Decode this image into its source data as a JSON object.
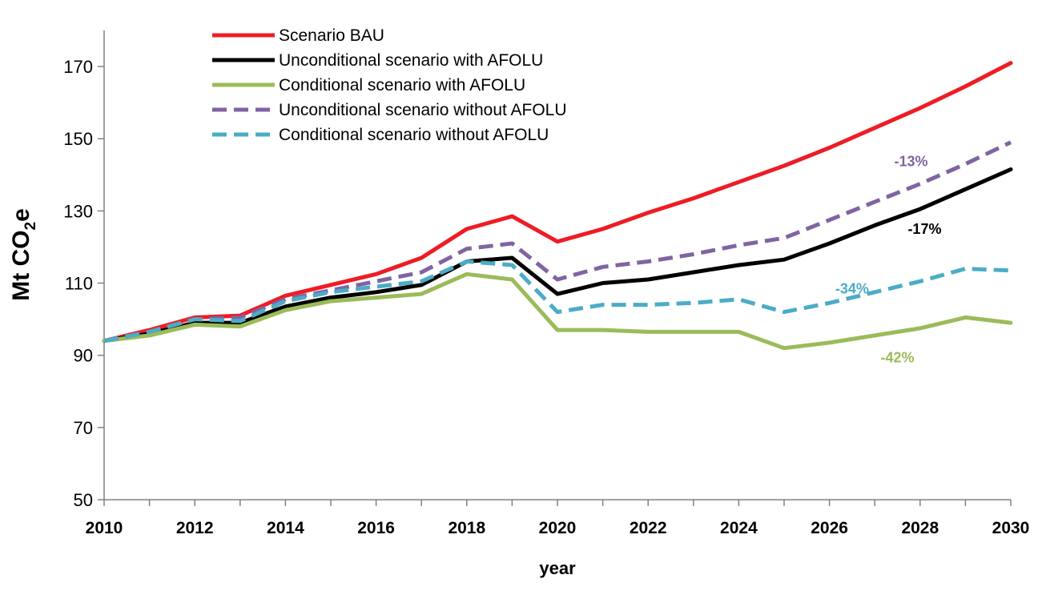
{
  "chart_data": {
    "type": "line",
    "xlabel": "year",
    "ylabel_main": "Mt CO",
    "ylabel_sub": "2",
    "ylabel_tail": "e",
    "xlim": [
      2010,
      2030
    ],
    "ylim": [
      50,
      180
    ],
    "xticks": [
      2010,
      2012,
      2014,
      2016,
      2018,
      2020,
      2022,
      2024,
      2026,
      2028,
      2030
    ],
    "yticks": [
      50,
      70,
      90,
      110,
      130,
      150,
      170
    ],
    "grid": false,
    "legend_position": "top-left",
    "x": [
      2010,
      2011,
      2012,
      2013,
      2014,
      2015,
      2016,
      2017,
      2018,
      2019,
      2020,
      2021,
      2022,
      2023,
      2024,
      2025,
      2026,
      2027,
      2028,
      2029,
      2030
    ],
    "series": [
      {
        "name": "Scenario BAU",
        "color": "#ee1c25",
        "dash": "solid",
        "values": [
          94,
          97,
          100.5,
          101,
          106.5,
          109.5,
          112.5,
          117,
          125,
          128.5,
          121.5,
          125,
          129.5,
          133.5,
          138,
          142.5,
          147.5,
          153,
          158.5,
          164.5,
          171
        ]
      },
      {
        "name": "Unconditional scenario with AFOLU",
        "color": "#000000",
        "dash": "solid",
        "values": [
          94,
          96,
          99,
          99,
          103.5,
          106,
          107.5,
          109.5,
          116,
          117,
          107,
          110,
          111,
          113,
          115,
          116.5,
          121,
          126,
          130.5,
          136,
          141.5
        ]
      },
      {
        "name": "Conditional scenario with AFOLU",
        "color": "#9bbb59",
        "dash": "solid",
        "values": [
          94,
          95.5,
          98.5,
          98,
          102.5,
          105,
          106,
          107,
          112.5,
          111,
          97,
          97,
          96.5,
          96.5,
          96.5,
          92,
          93.5,
          95.5,
          97.5,
          100.5,
          99
        ]
      },
      {
        "name": "Unconditional scenario without AFOLU",
        "color": "#8064a2",
        "dash": "dashed",
        "values": [
          94,
          96.5,
          100,
          100.5,
          105.5,
          108,
          110.5,
          113,
          119.5,
          121,
          111,
          114.5,
          116,
          118,
          120.5,
          122.5,
          127.5,
          132.5,
          137.5,
          143,
          149
        ]
      },
      {
        "name": "Conditional scenario without AFOLU",
        "color": "#4bacc6",
        "dash": "dashed",
        "values": [
          94,
          96.5,
          100,
          99.5,
          105,
          107.5,
          109,
          110.5,
          116,
          115,
          102,
          104,
          104,
          104.5,
          105.5,
          102,
          104.5,
          107.5,
          110.5,
          114,
          113.5
        ]
      }
    ],
    "annotations": [
      {
        "text": "-13%",
        "color": "#8064a2",
        "x": 2027.8,
        "y": 143.7
      },
      {
        "text": "-17%",
        "color": "#000000",
        "x": 2028.1,
        "y": 125
      },
      {
        "text": "-34%",
        "color": "#4bacc6",
        "x": 2026.5,
        "y": 108.5
      },
      {
        "text": "-42%",
        "color": "#9bbb59",
        "x": 2027.5,
        "y": 89.4
      }
    ]
  }
}
